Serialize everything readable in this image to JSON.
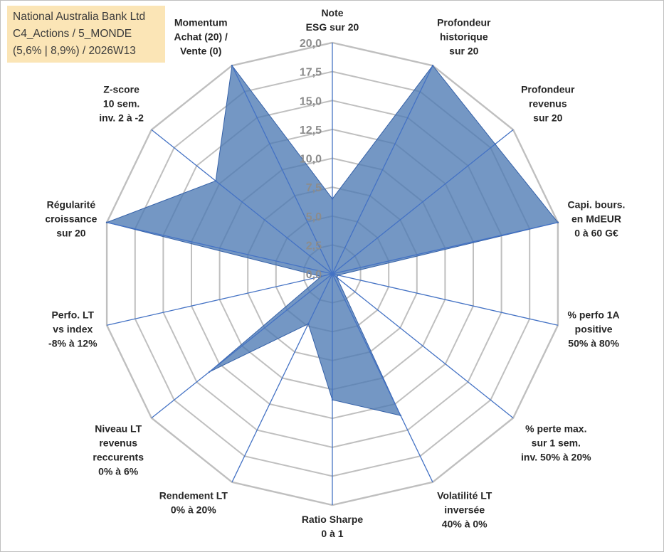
{
  "info_box": {
    "line1": "National Australia Bank Ltd",
    "line2": "C4_Actions / 5_MONDE",
    "line3": "(5,6% | 8,9%) / 2026W13"
  },
  "colors": {
    "fill": "#4d7ab3",
    "stroke": "#3561a8",
    "grid": "#bfbfbf",
    "spoke": "#4472c4",
    "tick_text": "#8c8c8c",
    "label_text": "#262626",
    "info_bg": "#fbe5b6"
  },
  "chart_data": {
    "type": "radar",
    "title": "",
    "r_range": [
      0,
      20
    ],
    "r_ticks": [
      "0,0",
      "2,5",
      "5,0",
      "7,5",
      "10,0",
      "12,5",
      "15,0",
      "17,5",
      "20,0"
    ],
    "axes": [
      [
        "Note",
        "ESG sur 20"
      ],
      [
        "Profondeur",
        "historique",
        "sur 20"
      ],
      [
        "Profondeur",
        "revenus",
        "sur 20"
      ],
      [
        "Capi. bours.",
        "en MdEUR",
        "0 à 60 G€"
      ],
      [
        "% perfo 1A",
        "positive",
        "50% à 80%"
      ],
      [
        "% perte max.",
        "sur 1 sem.",
        "inv. 50% à 20%"
      ],
      [
        "Volatilité LT",
        "inversée",
        "40% à 0%"
      ],
      [
        "Ratio Sharpe",
        "0 à 1"
      ],
      [
        "Rendement LT",
        "0% à 20%"
      ],
      [
        "Niveau LT",
        "revenus",
        "reccurents",
        "0% à 6%"
      ],
      [
        "Perfo. LT",
        "vs index",
        "-8% à 12%"
      ],
      [
        "Régularité",
        "croissance",
        "sur 20"
      ],
      [
        "Z-score",
        "10 sem.",
        "inv. 2 à -2"
      ],
      [
        "Momentum",
        "Achat (20) /",
        "Vente (0)"
      ]
    ],
    "series": [
      {
        "name": "National Australia Bank Ltd",
        "values": [
          6.5,
          20,
          18,
          20,
          0.5,
          0.5,
          13.6,
          10.9,
          4.8,
          13.6,
          1,
          20,
          12.9,
          20
        ]
      }
    ]
  }
}
